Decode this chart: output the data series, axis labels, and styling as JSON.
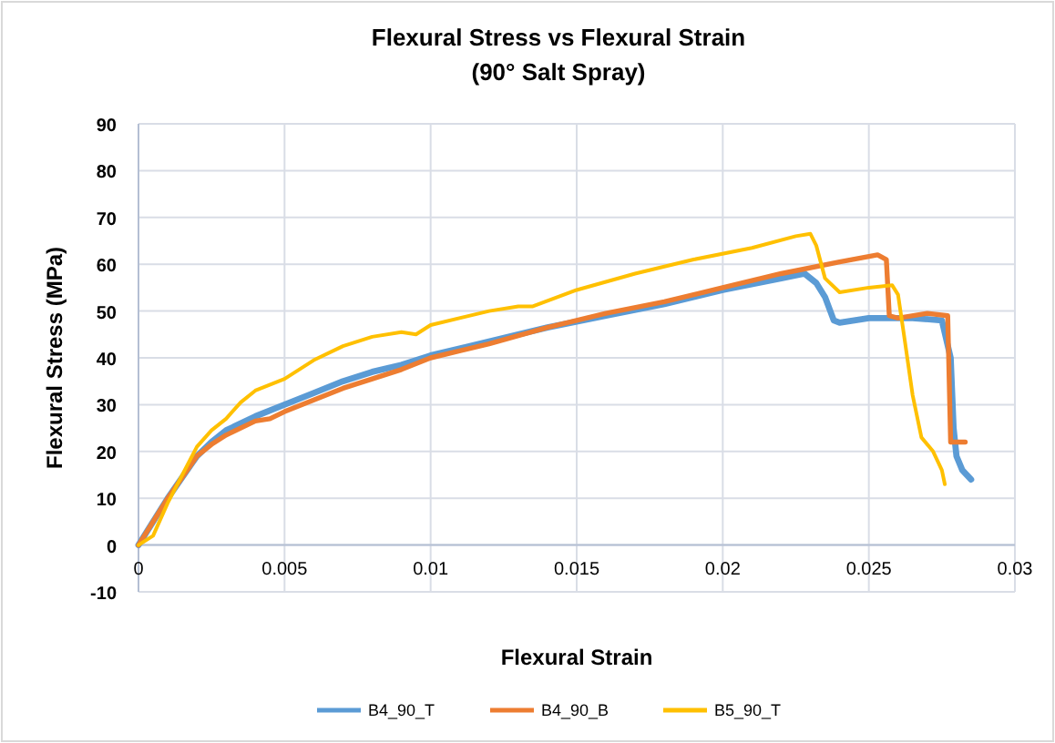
{
  "chart_data": {
    "type": "line",
    "title": "Flexural Stress vs Flexural Strain",
    "subtitle": "(90° Salt Spray)",
    "xlabel": "Flexural Strain",
    "ylabel": "Flexural Stress (MPa)",
    "xlim": [
      0,
      0.03
    ],
    "xticks": [
      0,
      0.005,
      0.01,
      0.015,
      0.02,
      0.025,
      0.03
    ],
    "ylim": [
      -10,
      90
    ],
    "yticks": [
      -10,
      0,
      10,
      20,
      30,
      40,
      50,
      60,
      70,
      80,
      90
    ],
    "grid": true,
    "legend": "bottom",
    "marker": "none",
    "line_style": "solid",
    "series": [
      {
        "name": "B4_90_T",
        "color": "#5b9bd5",
        "x": [
          0,
          0.001,
          0.002,
          0.0025,
          0.003,
          0.004,
          0.005,
          0.006,
          0.007,
          0.008,
          0.009,
          0.01,
          0.012,
          0.014,
          0.016,
          0.018,
          0.02,
          0.022,
          0.0228,
          0.0232,
          0.0235,
          0.0238,
          0.024,
          0.025,
          0.0265,
          0.0275,
          0.0278,
          0.0279,
          0.028,
          0.0282,
          0.0285
        ],
        "values": [
          0,
          10,
          19,
          22,
          24.5,
          27.5,
          30,
          32.5,
          35,
          37,
          38.5,
          40.5,
          43.5,
          46.5,
          49,
          51.5,
          54.5,
          57,
          58,
          56,
          53,
          48,
          47.5,
          48.5,
          48.5,
          48,
          40,
          25,
          19,
          16,
          14
        ]
      },
      {
        "name": "B4_90_B",
        "color": "#ed7d31",
        "x": [
          0,
          0.001,
          0.002,
          0.0025,
          0.003,
          0.004,
          0.0045,
          0.005,
          0.006,
          0.007,
          0.008,
          0.009,
          0.01,
          0.012,
          0.014,
          0.016,
          0.018,
          0.02,
          0.022,
          0.024,
          0.0253,
          0.0256,
          0.0257,
          0.026,
          0.027,
          0.0277,
          0.0278,
          0.0283
        ],
        "values": [
          0,
          10,
          19,
          21.5,
          23.5,
          26.5,
          27,
          28.5,
          31,
          33.5,
          35.5,
          37.5,
          40,
          43,
          46.5,
          49.5,
          52,
          55,
          58,
          60.5,
          62,
          61,
          49,
          48.5,
          49.5,
          49,
          22,
          22
        ]
      },
      {
        "name": "B5_90_T",
        "color": "#ffc000",
        "x": [
          0,
          0.0005,
          0.001,
          0.0015,
          0.002,
          0.0025,
          0.003,
          0.0035,
          0.004,
          0.005,
          0.006,
          0.007,
          0.008,
          0.009,
          0.0095,
          0.01,
          0.012,
          0.013,
          0.0135,
          0.015,
          0.017,
          0.019,
          0.021,
          0.0225,
          0.023,
          0.0232,
          0.0235,
          0.024,
          0.025,
          0.0258,
          0.026,
          0.0262,
          0.0265,
          0.0268,
          0.0272,
          0.0275,
          0.0276
        ],
        "values": [
          0,
          2,
          9,
          15,
          21,
          24.5,
          27,
          30.5,
          33,
          35.5,
          39.5,
          42.5,
          44.5,
          45.5,
          45,
          47,
          50,
          51,
          51,
          54.5,
          58,
          61,
          63.5,
          66,
          66.5,
          64,
          57,
          54,
          55,
          55.5,
          53.5,
          45,
          32,
          23,
          20,
          16,
          13
        ]
      }
    ]
  }
}
